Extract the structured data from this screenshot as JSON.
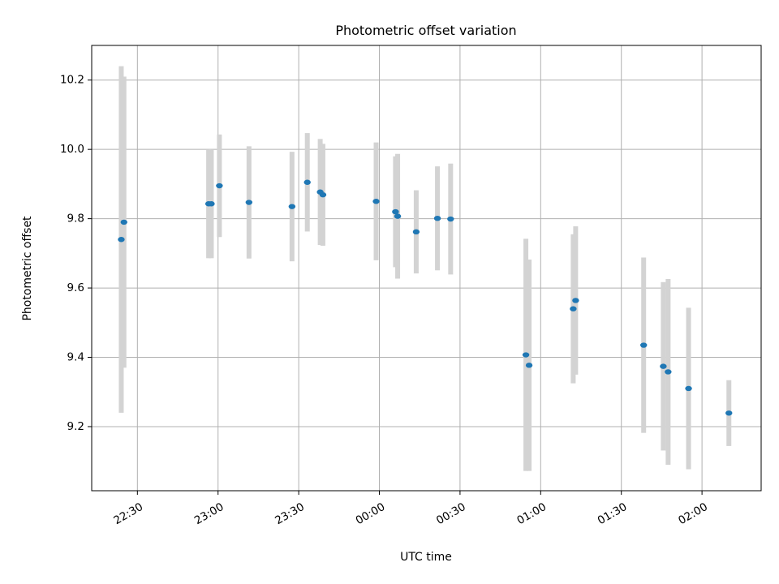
{
  "chart_data": {
    "type": "scatter",
    "title": "Photometric offset variation",
    "xlabel": "UTC time",
    "ylabel": "Photometric offset",
    "x_unit": "minutes from 22:00 UTC",
    "xlim": [
      13,
      262
    ],
    "ylim": [
      9.015,
      10.3
    ],
    "grid": true,
    "x_ticks": [
      {
        "value": 30,
        "label": "22:30"
      },
      {
        "value": 60,
        "label": "23:00"
      },
      {
        "value": 90,
        "label": "23:30"
      },
      {
        "value": 120,
        "label": "00:00"
      },
      {
        "value": 150,
        "label": "00:30"
      },
      {
        "value": 180,
        "label": "01:00"
      },
      {
        "value": 210,
        "label": "01:30"
      },
      {
        "value": 240,
        "label": "02:00"
      }
    ],
    "y_ticks": [
      {
        "value": 9.2,
        "label": "9.2"
      },
      {
        "value": 9.4,
        "label": "9.4"
      },
      {
        "value": 9.6,
        "label": "9.6"
      },
      {
        "value": 9.8,
        "label": "9.8"
      },
      {
        "value": 10.0,
        "label": "10.0"
      },
      {
        "value": 10.2,
        "label": "10.2"
      }
    ],
    "marker_color": "#1f77b4",
    "error_color": "#d3d3d3",
    "points": [
      {
        "x": 24.0,
        "y": 9.74,
        "yerr": 0.5
      },
      {
        "x": 25.0,
        "y": 9.79,
        "yerr": 0.42
      },
      {
        "x": 56.5,
        "y": 9.843,
        "yerr": 0.157
      },
      {
        "x": 57.5,
        "y": 9.843,
        "yerr": 0.157
      },
      {
        "x": 60.5,
        "y": 9.895,
        "yerr": 0.148
      },
      {
        "x": 71.5,
        "y": 9.847,
        "yerr": 0.162
      },
      {
        "x": 87.5,
        "y": 9.835,
        "yerr": 0.158
      },
      {
        "x": 93.2,
        "y": 9.905,
        "yerr": 0.142
      },
      {
        "x": 98.0,
        "y": 9.877,
        "yerr": 0.153
      },
      {
        "x": 99.0,
        "y": 9.869,
        "yerr": 0.147
      },
      {
        "x": 118.8,
        "y": 9.85,
        "yerr": 0.17
      },
      {
        "x": 126.0,
        "y": 9.82,
        "yerr": 0.16
      },
      {
        "x": 126.8,
        "y": 9.807,
        "yerr": 0.18
      },
      {
        "x": 133.7,
        "y": 9.762,
        "yerr": 0.12
      },
      {
        "x": 141.6,
        "y": 9.801,
        "yerr": 0.15
      },
      {
        "x": 146.5,
        "y": 9.799,
        "yerr": 0.16
      },
      {
        "x": 174.5,
        "y": 9.407,
        "yerr": 0.335
      },
      {
        "x": 175.7,
        "y": 9.377,
        "yerr": 0.305
      },
      {
        "x": 192.1,
        "y": 9.54,
        "yerr": 0.215
      },
      {
        "x": 193.0,
        "y": 9.564,
        "yerr": 0.214
      },
      {
        "x": 218.3,
        "y": 9.435,
        "yerr": 0.253
      },
      {
        "x": 225.6,
        "y": 9.374,
        "yerr": 0.243
      },
      {
        "x": 227.4,
        "y": 9.358,
        "yerr": 0.268
      },
      {
        "x": 235.0,
        "y": 9.31,
        "yerr": 0.233
      },
      {
        "x": 250.0,
        "y": 9.239,
        "yerr": 0.095
      }
    ]
  }
}
